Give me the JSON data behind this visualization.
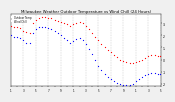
{
  "title": "Milwaukee Weather Outdoor Temperature vs Wind Chill (24 Hours)",
  "title_fontsize": 2.8,
  "bg_color": "#f0f0f0",
  "plot_bg_color": "#ffffff",
  "temp_color": "#ff0000",
  "wind_chill_color": "#0000ff",
  "dot_size": 0.8,
  "legend_label_temp": "Outdoor Temp",
  "legend_label_wc": "Wind Chill",
  "xlim": [
    0,
    288
  ],
  "ylim": [
    -22,
    38
  ],
  "ytick_vals": [
    30,
    20,
    10,
    0,
    -10,
    -20
  ],
  "ytick_labels": [
    "3.",
    "2.",
    "1.",
    "0",
    "-1",
    "-2"
  ],
  "temp": [
    [
      0,
      28
    ],
    [
      6,
      27
    ],
    [
      12,
      27
    ],
    [
      18,
      26
    ],
    [
      24,
      24
    ],
    [
      30,
      23
    ],
    [
      36,
      22
    ],
    [
      42,
      30
    ],
    [
      48,
      33
    ],
    [
      54,
      34
    ],
    [
      60,
      35
    ],
    [
      66,
      35
    ],
    [
      72,
      34
    ],
    [
      78,
      34
    ],
    [
      84,
      33
    ],
    [
      90,
      32
    ],
    [
      96,
      31
    ],
    [
      102,
      30
    ],
    [
      108,
      29
    ],
    [
      114,
      28
    ],
    [
      120,
      29
    ],
    [
      126,
      30
    ],
    [
      132,
      31
    ],
    [
      138,
      30
    ],
    [
      144,
      28
    ],
    [
      150,
      25
    ],
    [
      156,
      22
    ],
    [
      162,
      19
    ],
    [
      168,
      16
    ],
    [
      174,
      13
    ],
    [
      180,
      10
    ],
    [
      186,
      8
    ],
    [
      192,
      6
    ],
    [
      198,
      4
    ],
    [
      204,
      2
    ],
    [
      210,
      0
    ],
    [
      216,
      -1
    ],
    [
      222,
      -2
    ],
    [
      228,
      -3
    ],
    [
      234,
      -3
    ],
    [
      240,
      -2
    ],
    [
      246,
      -1
    ],
    [
      252,
      0
    ],
    [
      258,
      1
    ],
    [
      264,
      3
    ],
    [
      270,
      4
    ],
    [
      276,
      4
    ],
    [
      282,
      3
    ],
    [
      287,
      3
    ]
  ],
  "wind_chill": [
    [
      0,
      20
    ],
    [
      6,
      19
    ],
    [
      12,
      19
    ],
    [
      18,
      18
    ],
    [
      24,
      16
    ],
    [
      30,
      14
    ],
    [
      36,
      14
    ],
    [
      42,
      22
    ],
    [
      48,
      25
    ],
    [
      54,
      27
    ],
    [
      60,
      27
    ],
    [
      66,
      27
    ],
    [
      72,
      26
    ],
    [
      78,
      25
    ],
    [
      84,
      24
    ],
    [
      90,
      22
    ],
    [
      96,
      20
    ],
    [
      102,
      18
    ],
    [
      108,
      16
    ],
    [
      114,
      14
    ],
    [
      120,
      15
    ],
    [
      126,
      17
    ],
    [
      132,
      18
    ],
    [
      138,
      16
    ],
    [
      144,
      13
    ],
    [
      150,
      9
    ],
    [
      156,
      5
    ],
    [
      162,
      0
    ],
    [
      168,
      -5
    ],
    [
      174,
      -9
    ],
    [
      180,
      -12
    ],
    [
      186,
      -14
    ],
    [
      192,
      -16
    ],
    [
      198,
      -18
    ],
    [
      204,
      -19
    ],
    [
      210,
      -20
    ],
    [
      216,
      -21
    ],
    [
      222,
      -21
    ],
    [
      228,
      -21
    ],
    [
      234,
      -20
    ],
    [
      240,
      -18
    ],
    [
      246,
      -16
    ],
    [
      252,
      -14
    ],
    [
      258,
      -13
    ],
    [
      264,
      -12
    ],
    [
      270,
      -11
    ],
    [
      276,
      -11
    ],
    [
      282,
      -12
    ],
    [
      287,
      -12
    ]
  ],
  "vlines_x": [
    24,
    48,
    72,
    96,
    120,
    144,
    168,
    192,
    216,
    240,
    264,
    288
  ],
  "xtick_positions": [
    0,
    12,
    24,
    36,
    48,
    60,
    72,
    84,
    96,
    108,
    120,
    132,
    144,
    156,
    168,
    180,
    192,
    204,
    216,
    228,
    240,
    252,
    264,
    276,
    288
  ],
  "xtick_labels": [
    "1",
    "",
    "3",
    "",
    "5",
    "",
    "7",
    "",
    "9",
    "",
    "1",
    "",
    "3",
    "",
    "5",
    "",
    "7",
    "",
    "9",
    "",
    "1",
    "",
    "3",
    "",
    "5"
  ]
}
